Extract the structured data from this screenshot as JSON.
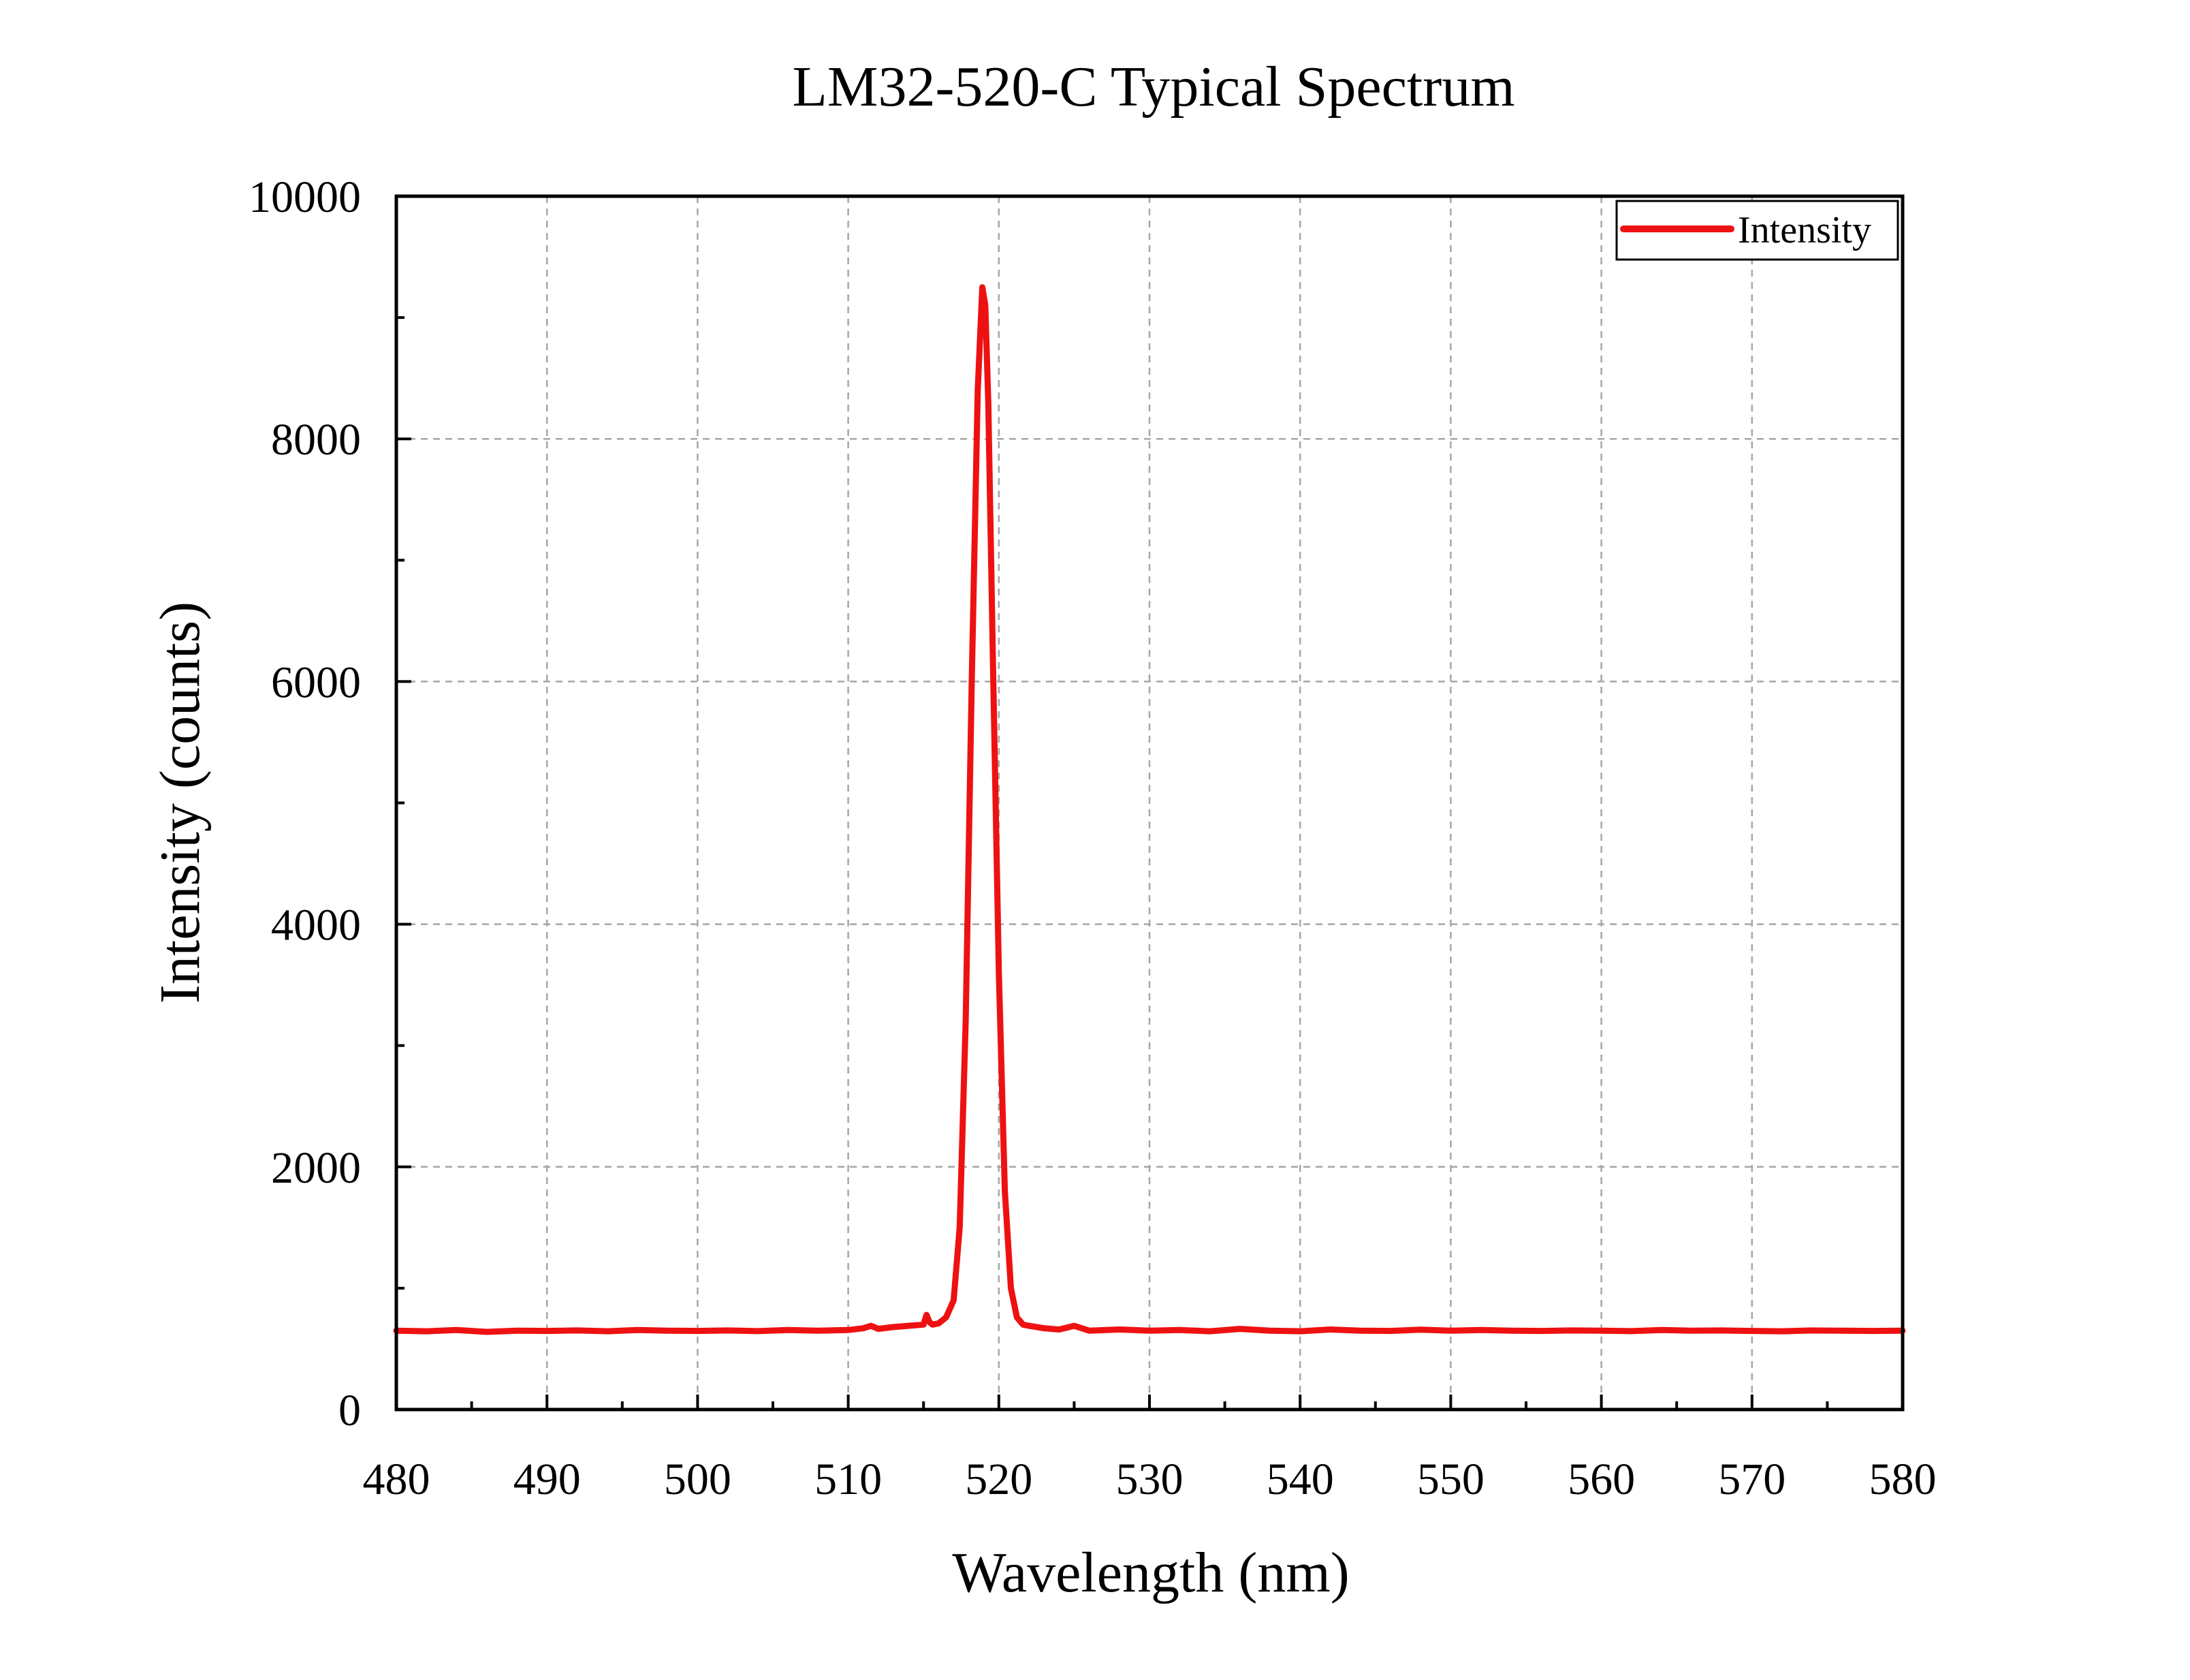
{
  "chart_data": {
    "type": "line",
    "title": "LM32-520-C Typical Spectrum",
    "xlabel": "Wavelength (nm)",
    "ylabel": "Intensity (counts)",
    "xlim": [
      480,
      580
    ],
    "ylim": [
      0,
      10000
    ],
    "x_ticks": [
      480,
      490,
      500,
      510,
      520,
      530,
      540,
      550,
      560,
      570,
      580
    ],
    "y_ticks": [
      0,
      2000,
      4000,
      6000,
      8000,
      10000
    ],
    "x_tick_labels": [
      "480",
      "490",
      "500",
      "510",
      "520",
      "530",
      "540",
      "550",
      "560",
      "570",
      "580"
    ],
    "y_tick_labels": [
      "0",
      "2000",
      "4000",
      "6000",
      "8000",
      "10000"
    ],
    "grid": true,
    "legend": {
      "position": "top-right",
      "entries": [
        "Intensity"
      ]
    },
    "series": [
      {
        "name": "Intensity",
        "color": "#ee1111",
        "x": [
          480,
          482,
          484,
          486,
          488,
          490,
          492,
          494,
          496,
          498,
          500,
          502,
          504,
          506,
          508,
          510,
          511,
          511.5,
          512,
          513,
          514,
          515,
          515.2,
          515.4,
          515.6,
          516,
          516.5,
          517,
          517.4,
          517.8,
          518.2,
          518.6,
          518.9,
          519.1,
          519.3,
          519.6,
          520,
          520.4,
          520.8,
          521.2,
          521.6,
          522,
          523,
          524,
          525,
          526,
          528,
          530,
          532,
          534,
          536,
          538,
          540,
          542,
          544,
          546,
          548,
          550,
          552,
          554,
          556,
          558,
          560,
          562,
          564,
          566,
          568,
          570,
          572,
          574,
          576,
          578,
          580
        ],
        "y": [
          650,
          645,
          655,
          640,
          650,
          648,
          652,
          645,
          655,
          650,
          648,
          652,
          646,
          655,
          650,
          655,
          670,
          690,
          665,
          680,
          690,
          700,
          780,
          720,
          700,
          710,
          760,
          900,
          1500,
          3200,
          6000,
          8400,
          9250,
          9100,
          8300,
          6200,
          3600,
          1800,
          1000,
          760,
          700,
          690,
          670,
          660,
          690,
          650,
          660,
          650,
          655,
          645,
          665,
          650,
          645,
          660,
          650,
          648,
          658,
          650,
          655,
          650,
          648,
          652,
          650,
          646,
          655,
          650,
          652,
          648,
          645,
          652,
          650,
          648,
          650
        ]
      }
    ]
  }
}
